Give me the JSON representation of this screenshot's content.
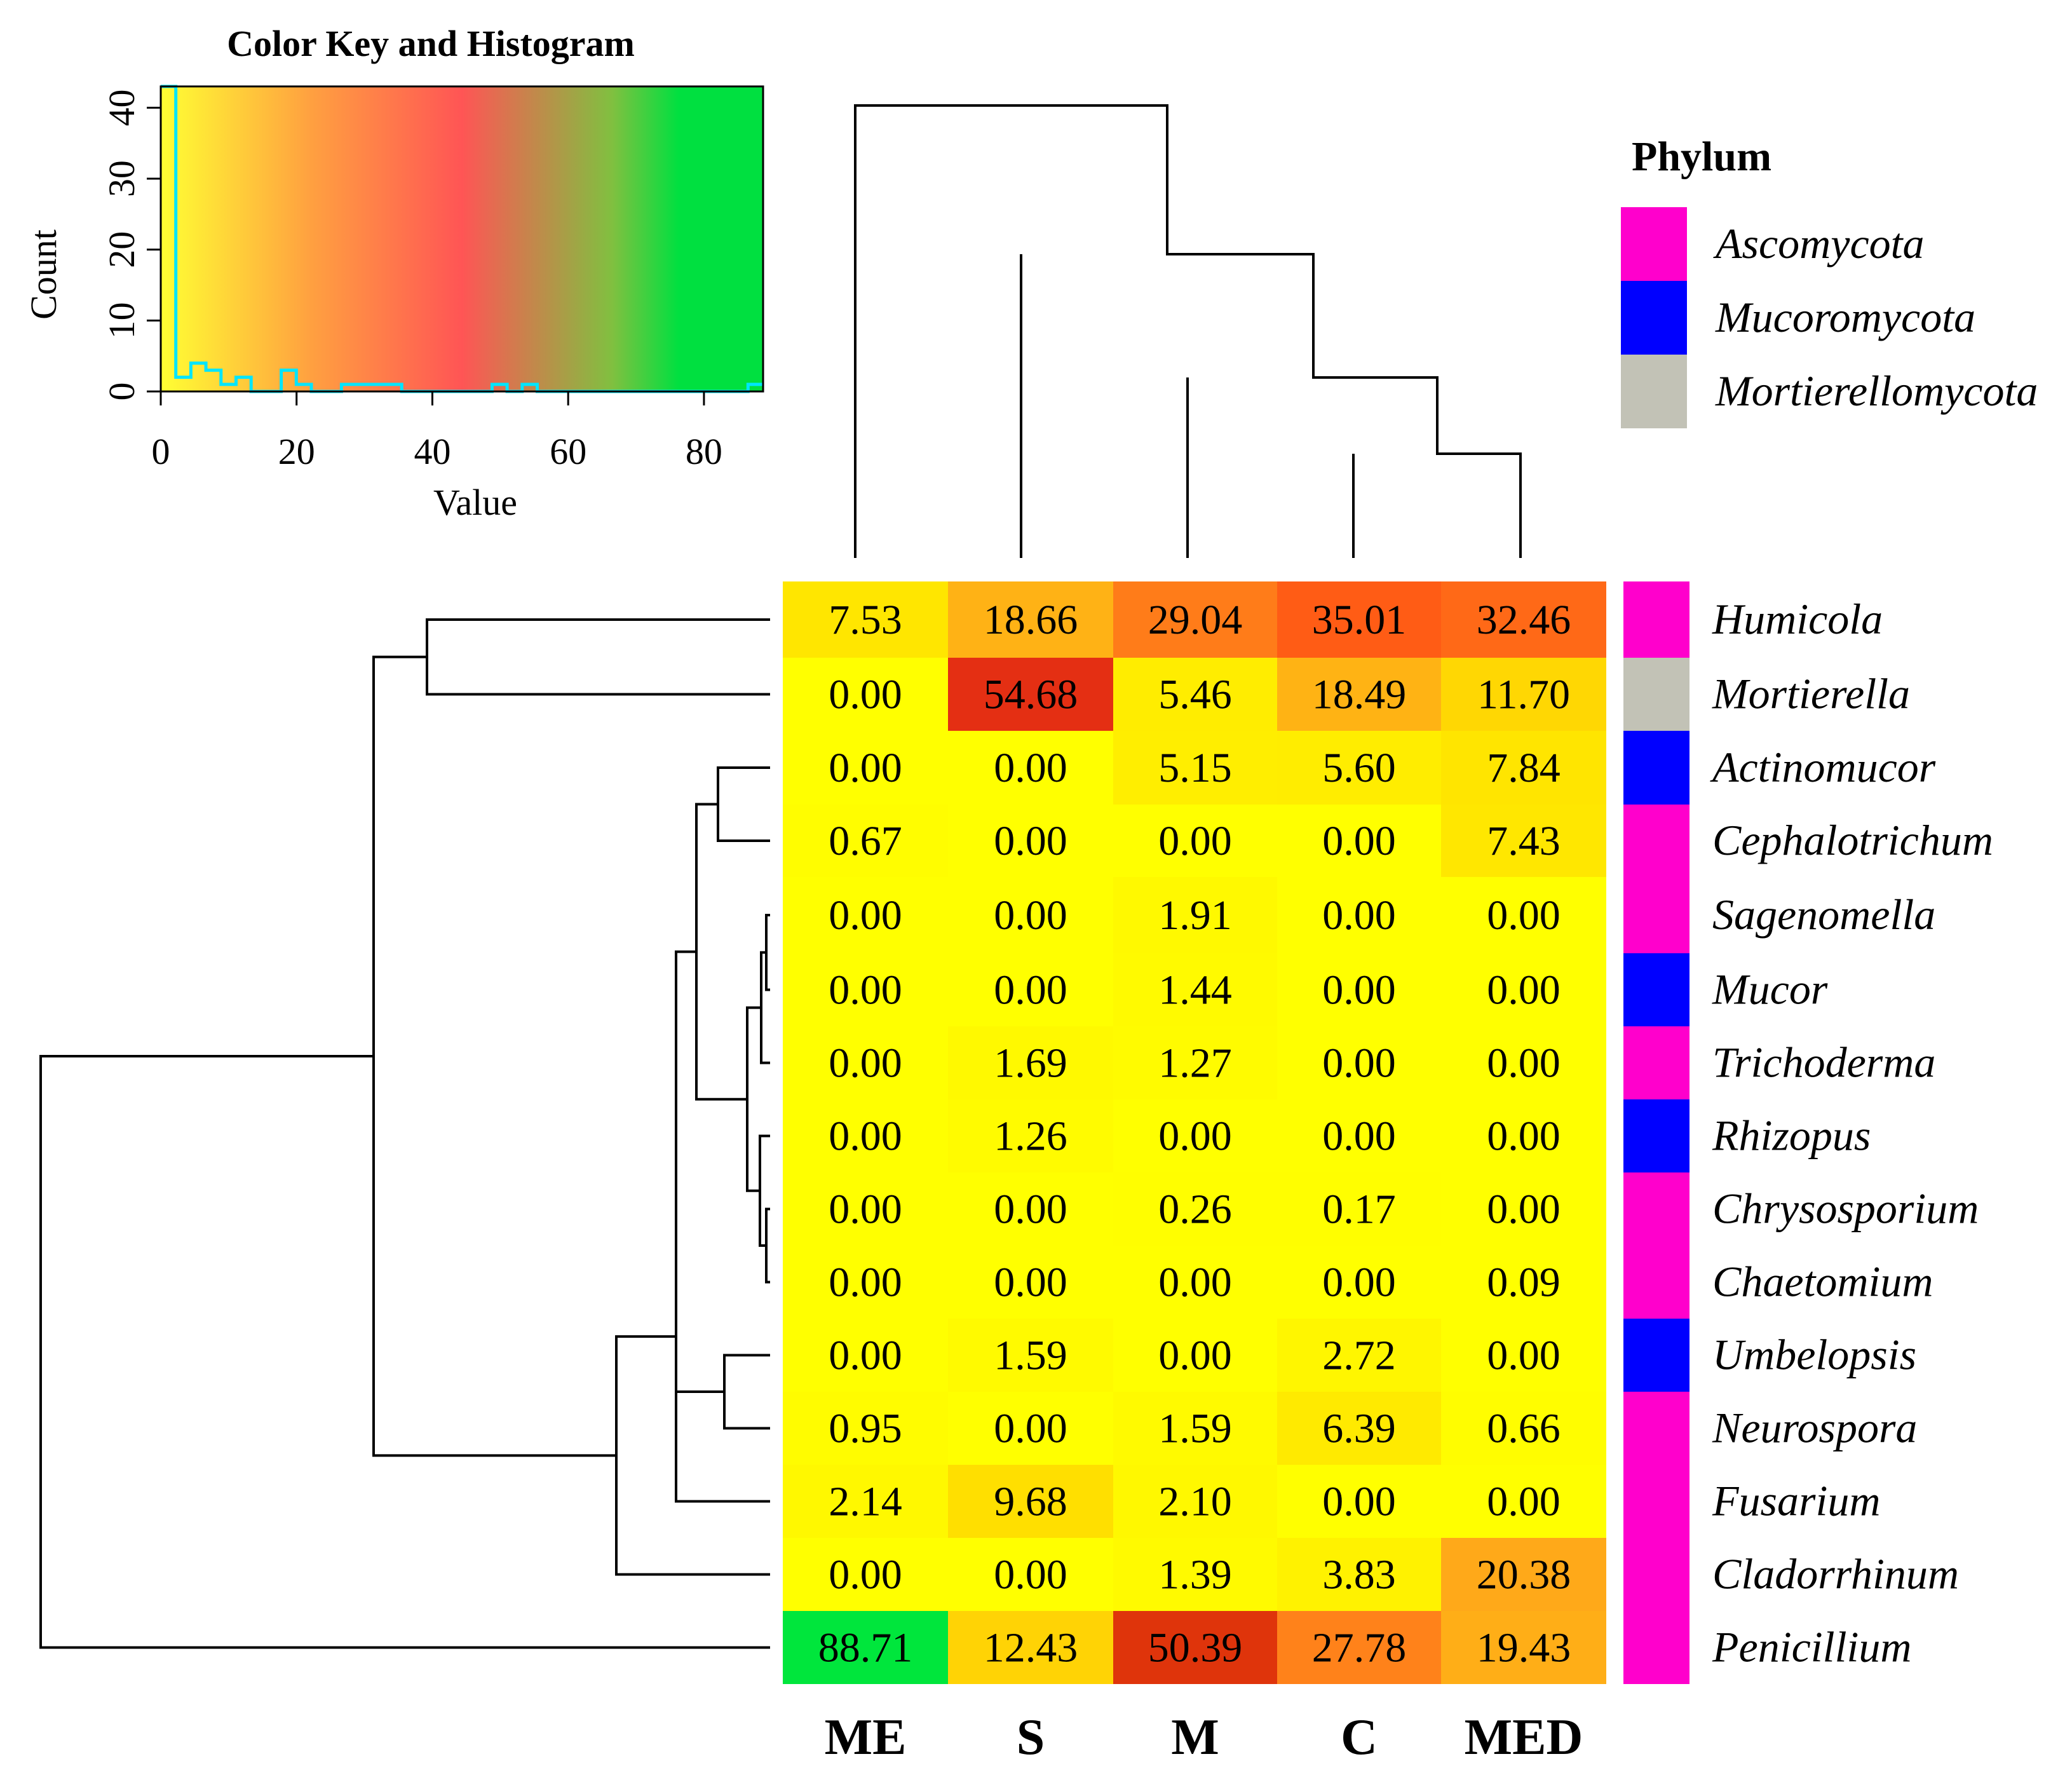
{
  "chart_data": {
    "type": "heatmap",
    "title": "Color Key and Histogram",
    "columns": [
      "ME",
      "S",
      "M",
      "C",
      "MED"
    ],
    "rows": [
      "Humicola",
      "Mortierella",
      "Actinomucor",
      "Cephalotrichum",
      "Sagenomella",
      "Mucor",
      "Trichoderma",
      "Rhizopus",
      "Chrysosporium",
      "Chaetomium",
      "Umbelopsis",
      "Neurospora",
      "Fusarium",
      "Cladorrhinum",
      "Penicillium"
    ],
    "values": [
      [
        7.53,
        18.66,
        29.04,
        35.01,
        32.46
      ],
      [
        0.0,
        54.68,
        5.46,
        18.49,
        11.7
      ],
      [
        0.0,
        0.0,
        5.15,
        5.6,
        7.84
      ],
      [
        0.67,
        0.0,
        0.0,
        0.0,
        7.43
      ],
      [
        0.0,
        0.0,
        1.91,
        0.0,
        0.0
      ],
      [
        0.0,
        0.0,
        1.44,
        0.0,
        0.0
      ],
      [
        0.0,
        1.69,
        1.27,
        0.0,
        0.0
      ],
      [
        0.0,
        1.26,
        0.0,
        0.0,
        0.0
      ],
      [
        0.0,
        0.0,
        0.26,
        0.17,
        0.0
      ],
      [
        0.0,
        0.0,
        0.0,
        0.0,
        0.09
      ],
      [
        0.0,
        1.59,
        0.0,
        2.72,
        0.0
      ],
      [
        0.95,
        0.0,
        1.59,
        6.39,
        0.66
      ],
      [
        2.14,
        9.68,
        2.1,
        0.0,
        0.0
      ],
      [
        0.0,
        0.0,
        1.39,
        3.83,
        20.38
      ],
      [
        88.71,
        12.43,
        50.39,
        27.78,
        19.43
      ]
    ],
    "row_phylum": [
      "Ascomycota",
      "Mortierellomycota",
      "Mucoromycota",
      "Ascomycota",
      "Ascomycota",
      "Mucoromycota",
      "Ascomycota",
      "Mucoromycota",
      "Ascomycota",
      "Ascomycota",
      "Mucoromycota",
      "Ascomycota",
      "Ascomycota",
      "Ascomycota",
      "Ascomycota"
    ],
    "phylum_legend": {
      "title": "Phylum",
      "entries": [
        {
          "name": "Ascomycota",
          "color": "#ff00cc"
        },
        {
          "name": "Mucoromycota",
          "color": "#0000ff"
        },
        {
          "name": "Mortierellomycota",
          "color": "#c2c2b6"
        }
      ]
    },
    "color_key": {
      "title": "Color Key and Histogram",
      "xlabel": "Value",
      "ylabel": "Count",
      "xlim": [
        0,
        88.71
      ],
      "ylim": [
        0,
        43
      ],
      "xticks": [
        0,
        20,
        40,
        60,
        80
      ],
      "yticks": [
        0,
        10,
        20,
        30,
        40
      ],
      "histogram_line_color": "#00e5ff",
      "colors": [
        "#ffff33",
        "#ffa040",
        "#ff5555",
        "#00e040"
      ]
    },
    "column_dendrogram": "(ME,(S,(M,(C,MED))))",
    "row_dendrogram": "((Humicola,Mortierella),((((Actinomucor,Cephalotrichum),(((Sagenomella,Mucor),Trichoderma),(Rhizopus,(Chrysosporium,Chaetomium)))),(Umbelopsis,Neurospora)),Fusarium),Cladorrhinum)),Penicillium)"
  }
}
